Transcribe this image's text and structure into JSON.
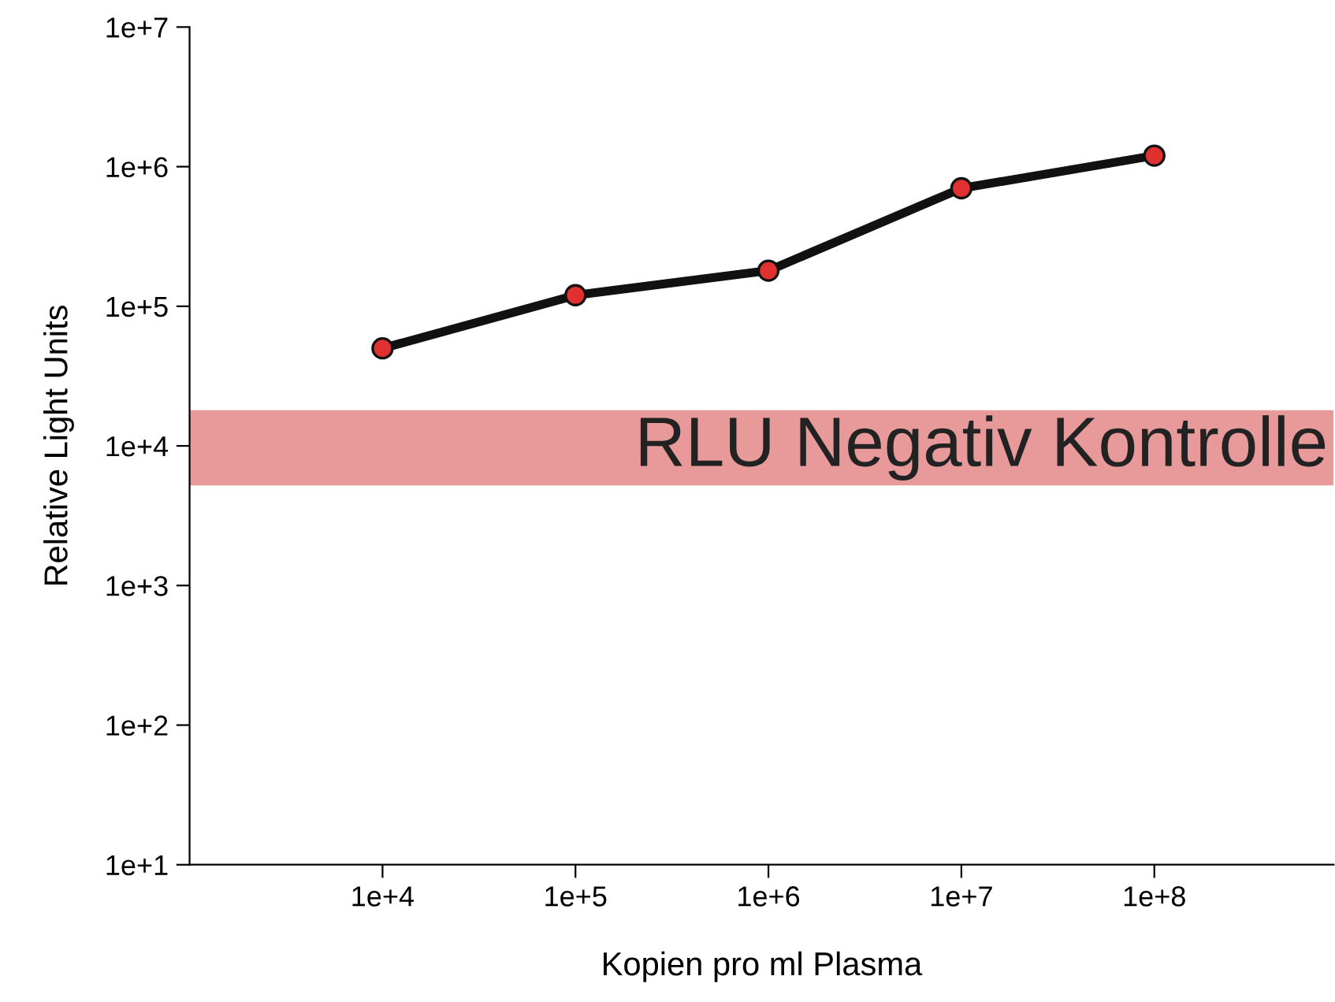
{
  "chart_data": {
    "type": "line",
    "xlabel": "Kopien pro ml Plasma",
    "ylabel": "Relative Light Units",
    "x": [
      10000,
      100000,
      1000000,
      10000000,
      100000000
    ],
    "series": [
      {
        "color": "#111111",
        "values": [
          50000,
          120000,
          180000,
          700000,
          1200000
        ]
      }
    ],
    "log": "xy",
    "marker": "circle",
    "line_style": "solid",
    "grid": false,
    "legend": false,
    "xlim": [
      1000,
      850000000
    ],
    "ylim": [
      10,
      10000000
    ],
    "xticks": [
      {
        "value": 10000,
        "label": "1e+4"
      },
      {
        "value": 100000,
        "label": "1e+5"
      },
      {
        "value": 1000000,
        "label": "1e+6"
      },
      {
        "value": 10000000,
        "label": "1e+7"
      },
      {
        "value": 100000000,
        "label": "1e+8"
      }
    ],
    "yticks": [
      {
        "value": 10,
        "label": "1e+1"
      },
      {
        "value": 100,
        "label": "1e+2"
      },
      {
        "value": 1000,
        "label": "1e+3"
      },
      {
        "value": 10000,
        "label": "1e+4"
      },
      {
        "value": 100000,
        "label": "1e+5"
      },
      {
        "value": 1000000,
        "label": "1e+6"
      },
      {
        "value": 10000000,
        "label": "1e+7"
      }
    ],
    "bands": [
      {
        "axis": "y",
        "from": 5200,
        "to": 18000,
        "label": "RLU Negativ Kontrolle",
        "color": "#e89a9a"
      }
    ]
  }
}
